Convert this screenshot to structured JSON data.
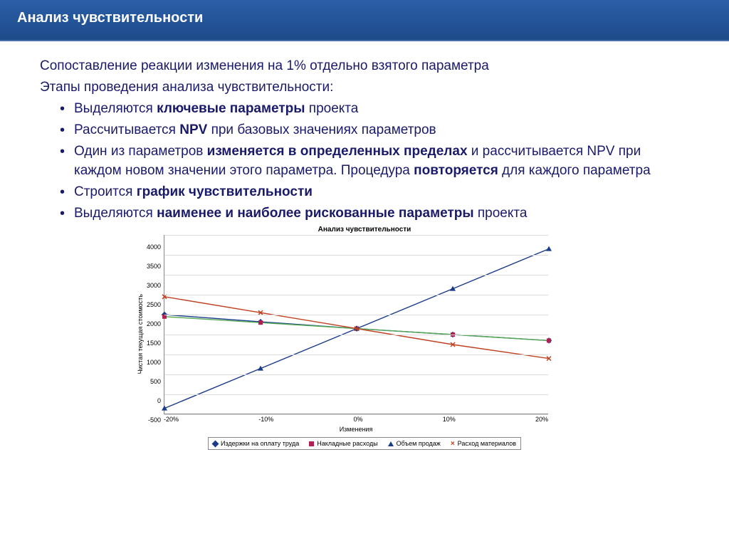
{
  "header": {
    "title": "Анализ чувствительности"
  },
  "intro": "Сопоставление реакции изменения на 1% отдельно взятого параметра",
  "steps_label": "Этапы проведения анализа чувствительности:",
  "bullets": {
    "b1a": "Выделяются ",
    "b1b": "ключевые параметры",
    "b1c": " проекта",
    "b2a": "Рассчитывается ",
    "b2b": "NPV",
    "b2c": " при базовых значениях параметров",
    "b3a": "Один из параметров ",
    "b3b": "изменяется в определенных пределах",
    "b3c": " и рассчитывается NPV при каждом новом значении этого параметра. Процедура ",
    "b3d": "повторяется",
    "b3e": " для каждого параметра",
    "b4a": "Строится ",
    "b4b": "график чувствительности",
    "b5a": "Выделяются ",
    "b5b": "наименее и наиболее рискованные параметры",
    "b5c": " проекта"
  },
  "chart": {
    "type": "line",
    "title": "Анализ чувствительности",
    "xlabel": "Изменения",
    "ylabel": "Чистая текущая стоимость",
    "xlim": [
      -20,
      20
    ],
    "ylim": [
      -500,
      4000
    ],
    "ytick_step": 500,
    "yticks": [
      "4000",
      "3500",
      "3000",
      "2500",
      "2000",
      "1500",
      "1000",
      "500",
      "0",
      "-500"
    ],
    "xticks": [
      "-20%",
      "-10%",
      "0%",
      "10%",
      "20%"
    ],
    "grid_color": "#dddddd",
    "axis_color": "#888888",
    "background_color": "#ffffff",
    "title_fontsize": 10,
    "label_fontsize": 9,
    "series": [
      {
        "name": "Издержки на оплату труда",
        "color": "#1a3a8a",
        "marker": "diamond",
        "x": [
          -20,
          -10,
          0,
          10,
          20
        ],
        "y": [
          2000,
          1820,
          1650,
          1500,
          1350
        ]
      },
      {
        "name": "Накладные расходы",
        "color": "#b02050",
        "marker": "square",
        "x": [
          -20,
          -10,
          0,
          10,
          20
        ],
        "y": [
          1950,
          1800,
          1650,
          1500,
          1350
        ],
        "trend_color": "#55aa55"
      },
      {
        "name": "Объем продаж",
        "color": "#1a3a8a",
        "marker": "triangle",
        "x": [
          -20,
          -10,
          0,
          10,
          20
        ],
        "y": [
          -350,
          650,
          1650,
          2650,
          3650
        ]
      },
      {
        "name": "Расход материалов",
        "color": "#c04020",
        "marker": "x",
        "x": [
          -20,
          -10,
          0,
          10,
          20
        ],
        "y": [
          2450,
          2050,
          1650,
          1250,
          900
        ]
      }
    ],
    "legend": {
      "l1": "Издержки на оплату труда",
      "l2": "Накладные расходы",
      "l3": "Объем продаж",
      "l4": "Расход материалов"
    }
  }
}
